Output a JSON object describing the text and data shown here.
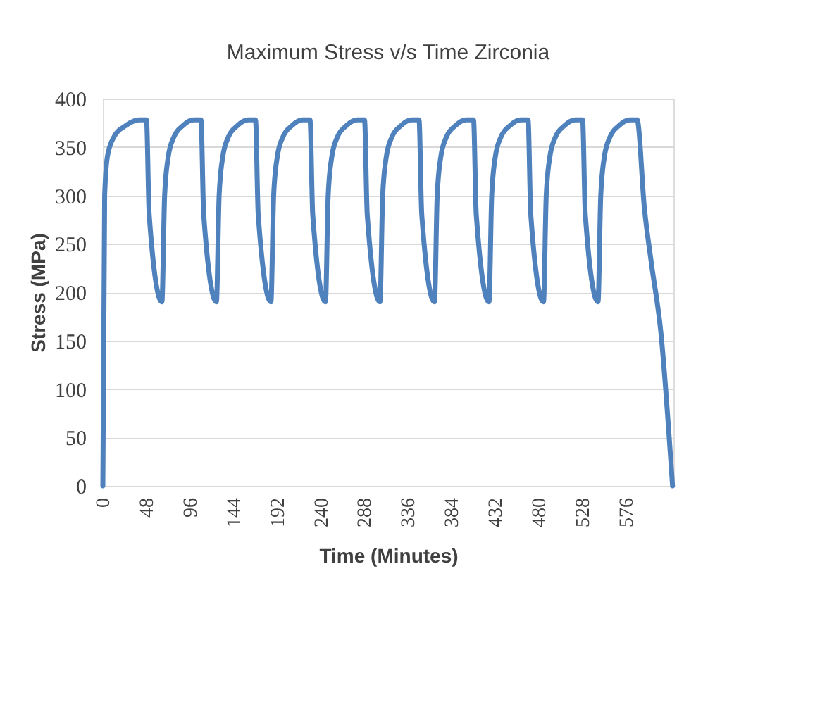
{
  "chart_data": {
    "type": "line",
    "title": "Maximum Stress v/s Time Zirconia",
    "xlabel": "Time (Minutes)",
    "ylabel": "Stress (MPa)",
    "x": [
      0,
      2,
      5,
      12,
      25,
      40,
      48,
      51,
      65,
      68,
      72,
      78,
      88,
      100,
      108,
      111,
      125,
      128,
      132,
      138,
      148,
      160,
      168,
      171,
      185,
      188,
      192,
      198,
      208,
      220,
      228,
      231,
      245,
      248,
      252,
      258,
      268,
      280,
      288,
      291,
      305,
      308,
      312,
      318,
      328,
      340,
      348,
      351,
      365,
      368,
      372,
      378,
      388,
      400,
      408,
      411,
      425,
      428,
      432,
      438,
      448,
      460,
      468,
      471,
      485,
      488,
      492,
      498,
      508,
      520,
      528,
      531,
      545,
      548,
      552,
      558,
      568,
      580,
      588,
      596,
      604,
      614,
      627
    ],
    "series": [
      {
        "color": "#4f81bd",
        "values": [
          0,
          300,
          340,
          360,
          372,
          378,
          378,
          280,
          190,
          300,
          340,
          360,
          372,
          378,
          378,
          280,
          190,
          300,
          340,
          360,
          372,
          378,
          378,
          280,
          190,
          300,
          340,
          360,
          372,
          378,
          378,
          280,
          190,
          300,
          340,
          360,
          372,
          378,
          378,
          280,
          190,
          300,
          340,
          360,
          372,
          378,
          378,
          280,
          190,
          300,
          340,
          360,
          372,
          378,
          378,
          280,
          190,
          300,
          340,
          360,
          372,
          378,
          378,
          280,
          190,
          300,
          340,
          360,
          372,
          378,
          378,
          280,
          190,
          300,
          340,
          360,
          372,
          378,
          378,
          287,
          228,
          160,
          0
        ]
      }
    ],
    "xlim": [
      0,
      628
    ],
    "xticks": [
      0,
      48,
      96,
      144,
      192,
      240,
      288,
      336,
      384,
      432,
      480,
      528,
      576
    ],
    "ylim": [
      0,
      400
    ],
    "yticks": [
      0,
      50,
      100,
      150,
      200,
      250,
      300,
      350,
      400
    ],
    "grid": "y",
    "marker": "none",
    "line_style": "solid"
  }
}
